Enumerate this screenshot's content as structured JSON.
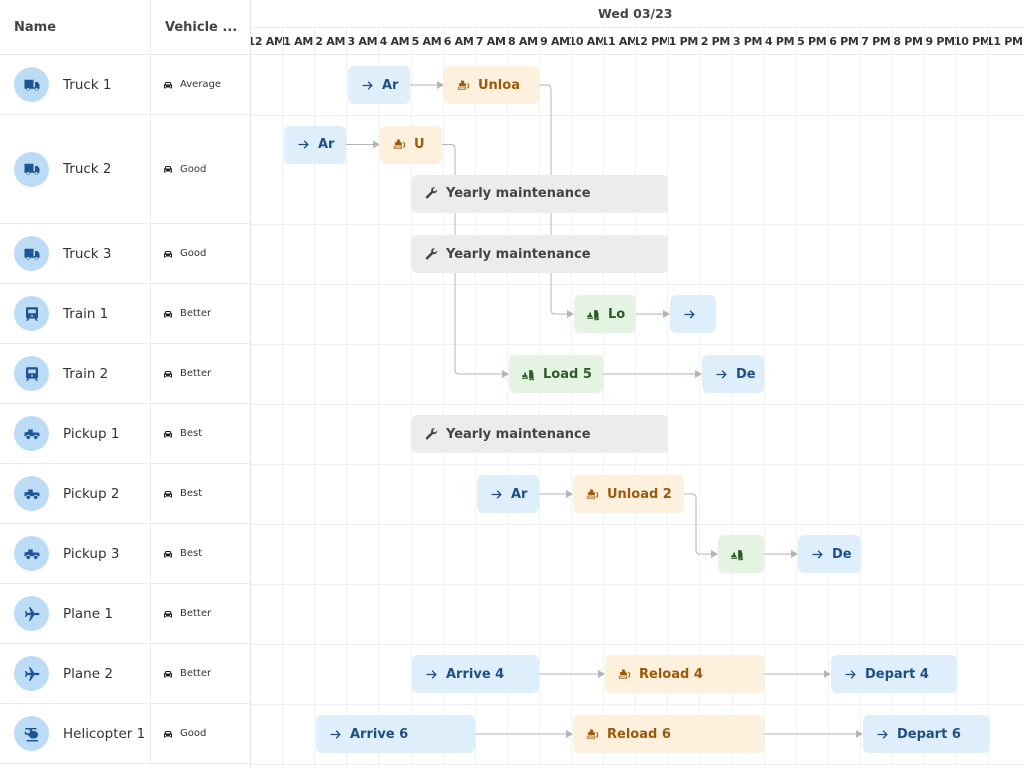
{
  "header": {
    "name_col": "Name",
    "vehicle_col": "Vehicle ...",
    "date": "Wed 03/23",
    "hours": [
      "12 AM",
      "1 AM",
      "2 AM",
      "3 AM",
      "4 AM",
      "5 AM",
      "6 AM",
      "7 AM",
      "8 AM",
      "9 AM",
      "10 AM",
      "11 AM",
      "12 PM",
      "1 PM",
      "2 PM",
      "3 PM",
      "4 PM",
      "5 PM",
      "6 PM",
      "7 PM",
      "8 PM",
      "9 PM",
      "10 PM",
      "11 PM"
    ]
  },
  "colors": {
    "arrive_bg": "#dfeefb",
    "arrive_fg": "#1d4f86",
    "unload_bg": "#fdf0dd",
    "unload_fg": "#9a5a09",
    "load_bg": "#e5f3e3",
    "load_fg": "#2d5b24",
    "maint_bg": "#ececec",
    "maint_fg": "#444444",
    "avatar_bg": "#bcdcf6",
    "avatar_fg": "#1d5596"
  },
  "resources": [
    {
      "name": "Truck 1",
      "icon": "truck-icon",
      "condition": "Average"
    },
    {
      "name": "Truck 2",
      "icon": "truck-icon",
      "condition": "Good"
    },
    {
      "name": "Truck 3",
      "icon": "truck-icon",
      "condition": "Good"
    },
    {
      "name": "Train 1",
      "icon": "train-icon",
      "condition": "Better"
    },
    {
      "name": "Train 2",
      "icon": "train-icon",
      "condition": "Better"
    },
    {
      "name": "Pickup 1",
      "icon": "pickup-icon",
      "condition": "Best"
    },
    {
      "name": "Pickup 2",
      "icon": "pickup-icon",
      "condition": "Best"
    },
    {
      "name": "Pickup 3",
      "icon": "pickup-icon",
      "condition": "Best"
    },
    {
      "name": "Plane 1",
      "icon": "plane-icon",
      "condition": "Better"
    },
    {
      "name": "Plane 2",
      "icon": "plane-icon",
      "condition": "Better"
    },
    {
      "name": "Helicopter 1",
      "icon": "helicopter-icon",
      "condition": "Good"
    }
  ],
  "tasks": [
    {
      "row": 0,
      "type": "arrive",
      "label": "Ar",
      "icon": "arrow-right-icon"
    },
    {
      "row": 0,
      "type": "unload",
      "label": "Unloa",
      "icon": "bulldozer-icon"
    },
    {
      "row": 1,
      "type": "arrive",
      "label": "Ar",
      "icon": "arrow-right-icon"
    },
    {
      "row": 1,
      "type": "unload",
      "label": "U",
      "icon": "bulldozer-icon"
    },
    {
      "row": 1,
      "type": "maintenance",
      "label": "Yearly maintenance",
      "icon": "wrench-icon"
    },
    {
      "row": 2,
      "type": "maintenance",
      "label": "Yearly maintenance",
      "icon": "wrench-icon"
    },
    {
      "row": 3,
      "type": "load",
      "label": "Lo",
      "icon": "forklift-icon"
    },
    {
      "row": 3,
      "type": "arrive",
      "label": "",
      "icon": "arrow-right-icon"
    },
    {
      "row": 4,
      "type": "load",
      "label": "Load 5",
      "icon": "forklift-icon"
    },
    {
      "row": 4,
      "type": "arrive",
      "label": "De",
      "icon": "arrow-right-icon"
    },
    {
      "row": 5,
      "type": "maintenance",
      "label": "Yearly maintenance",
      "icon": "wrench-icon"
    },
    {
      "row": 6,
      "type": "arrive",
      "label": "Ar",
      "icon": "arrow-right-icon"
    },
    {
      "row": 6,
      "type": "unload",
      "label": "Unload 2",
      "icon": "bulldozer-icon"
    },
    {
      "row": 7,
      "type": "load",
      "label": "",
      "icon": "forklift-icon"
    },
    {
      "row": 7,
      "type": "arrive",
      "label": "De",
      "icon": "arrow-right-icon"
    },
    {
      "row": 9,
      "type": "arrive",
      "label": "Arrive 4",
      "icon": "arrow-right-icon"
    },
    {
      "row": 9,
      "type": "unload",
      "label": "Reload 4",
      "icon": "bulldozer-icon"
    },
    {
      "row": 9,
      "type": "arrive",
      "label": "Depart 4",
      "icon": "arrow-right-icon"
    },
    {
      "row": 10,
      "type": "arrive",
      "label": "Arrive 6",
      "icon": "arrow-right-icon"
    },
    {
      "row": 10,
      "type": "unload",
      "label": "Reload 6",
      "icon": "bulldozer-icon"
    },
    {
      "row": 10,
      "type": "arrive",
      "label": "Depart 6",
      "icon": "arrow-right-icon"
    }
  ]
}
